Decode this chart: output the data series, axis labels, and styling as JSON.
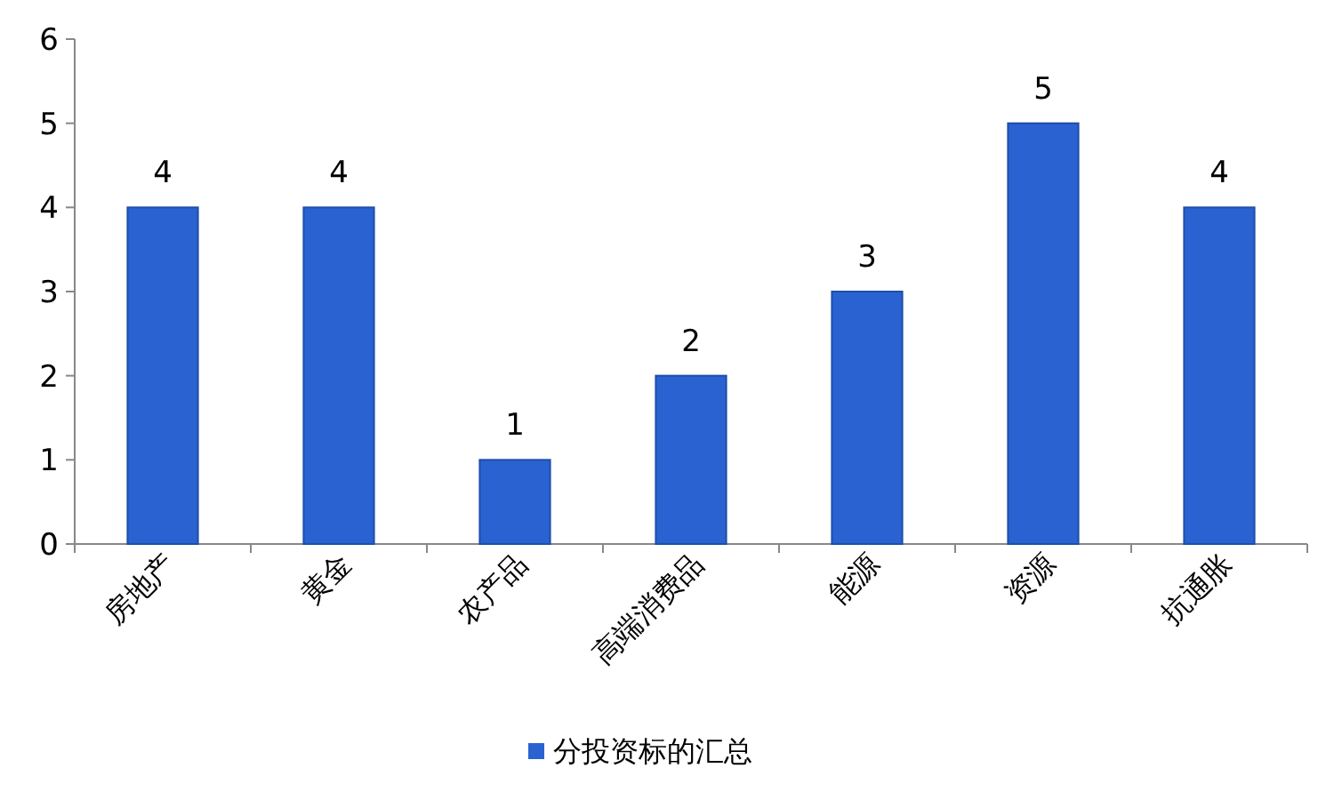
{
  "chart_data": {
    "type": "bar",
    "categories": [
      "房地产",
      "黄金",
      "农产品",
      "高端消费品",
      "能源",
      "资源",
      "抗通胀"
    ],
    "series": [
      {
        "name": "分投资标的汇总",
        "color": "#2b62d2",
        "values": [
          4,
          4,
          1,
          2,
          3,
          5,
          4
        ]
      }
    ],
    "ylim": [
      0,
      6
    ],
    "yticks": [
      0,
      1,
      2,
      3,
      4,
      5,
      6
    ],
    "data_labels": true,
    "legend": "bottom"
  }
}
